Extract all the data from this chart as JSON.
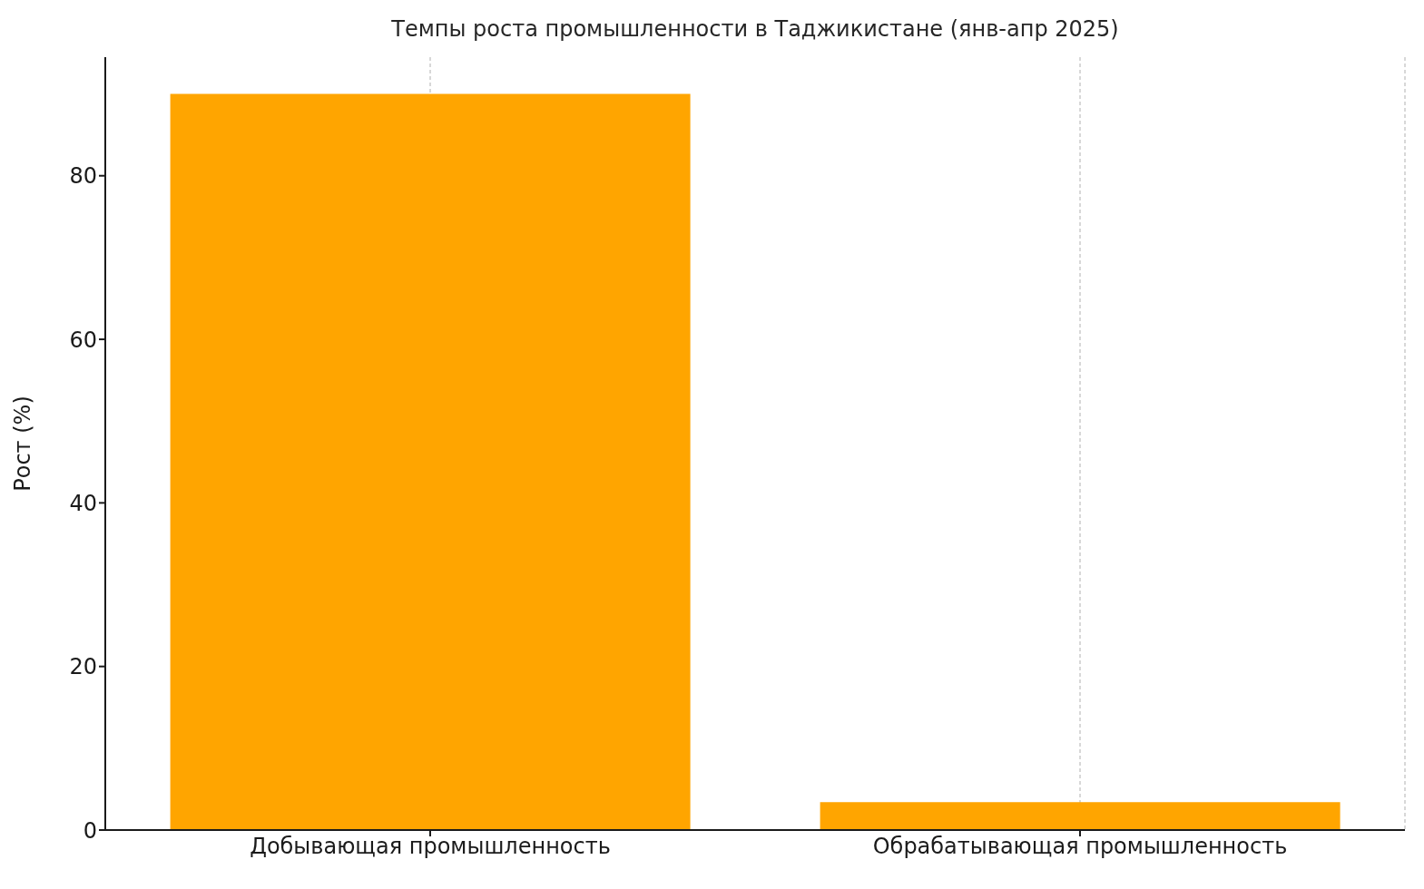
{
  "chart_data": {
    "type": "bar",
    "title": "Темпы роста промышленности в Таджикистане (янв-апр 2025)",
    "ylabel": "Рост (%)",
    "categories": [
      "Добывающая промышленность",
      "Обрабатывающая промышленность"
    ],
    "values": [
      90,
      3.4
    ],
    "color": "#ffa500",
    "ylim": [
      0,
      94.5
    ],
    "yticks": [
      0,
      20,
      40,
      60,
      80
    ],
    "grid": "x"
  }
}
